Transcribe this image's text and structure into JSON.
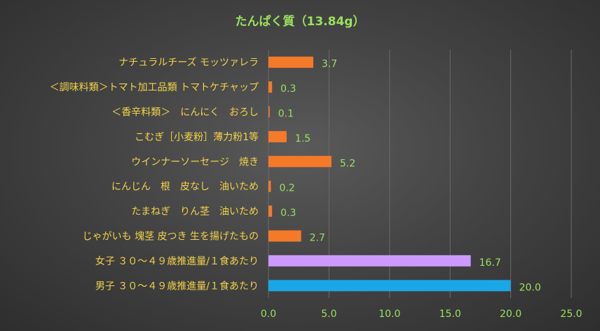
{
  "chart_data": {
    "type": "bar",
    "orientation": "horizontal",
    "title": "たんぱく質（13.84g）",
    "categories": [
      "ナチュラルチーズ モッツァレラ",
      "＜調味料類＞トマト加工品類 トマトケチャップ",
      "＜香辛料類＞　にんにく　おろし",
      "こむぎ［小麦粉］薄力粉1等",
      "ウインナーソーセージ　焼き",
      "にんじん　根　皮なし　油いため",
      "たまねぎ　りん茎　油いため",
      "じゃがいも 塊茎 皮つき 生を揚げたもの",
      "女子 ３０～４９歳推進量/１食あたり",
      "男子 ３０～４９歳推進量/１食あたり"
    ],
    "values": [
      3.7,
      0.3,
      0.1,
      1.5,
      5.2,
      0.2,
      0.3,
      2.7,
      16.7,
      20.0
    ],
    "value_labels": [
      "3.7",
      "0.3",
      "0.1",
      "1.5",
      "5.2",
      "0.2",
      "0.3",
      "2.7",
      "16.7",
      "20.0"
    ],
    "bar_colors": [
      "#f47a2a",
      "#f47a2a",
      "#f47a2a",
      "#f47a2a",
      "#f47a2a",
      "#f47a2a",
      "#f47a2a",
      "#f47a2a",
      "#cc99ff",
      "#1aa7e8"
    ],
    "xlim": [
      0,
      25
    ],
    "xticks": [
      0,
      5,
      10,
      15,
      20,
      25
    ],
    "xtick_labels": [
      "0.0",
      "5.0",
      "10.0",
      "15.0",
      "20.0",
      "25.0"
    ],
    "grid": "vertical",
    "legend": "none"
  }
}
